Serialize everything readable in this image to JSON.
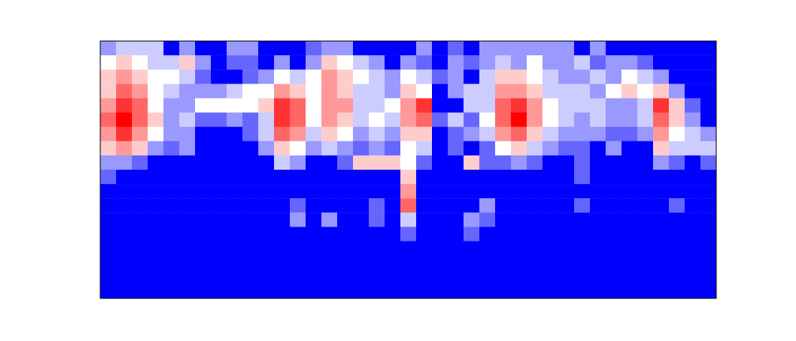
{
  "chart_data": {
    "type": "heatmap",
    "tick_labels": false,
    "color": "bwr",
    "color_range": [
      0,
      1
    ],
    "xlim": [
      0,
      39
    ],
    "ylim": [
      0,
      18
    ],
    "cells": [
      [
        0.3,
        0.4,
        0.4,
        0.4,
        0,
        0.3,
        0,
        0,
        0.3,
        0.3,
        0,
        0,
        0,
        0.2,
        0.3,
        0.3,
        0,
        0,
        0,
        0,
        0.3,
        0,
        0.2,
        0,
        0.3,
        0.3,
        0.3,
        0.3,
        0.3,
        0.3,
        0,
        0.3,
        0,
        0,
        0,
        0,
        0,
        0,
        0
      ],
      [
        0.5,
        0.6,
        0.5,
        0.4,
        0.4,
        0.6,
        0.3,
        0,
        0.2,
        0.2,
        0,
        0.3,
        0,
        0.3,
        0.6,
        0.5,
        0.4,
        0.3,
        0,
        0.3,
        0.2,
        0,
        0.3,
        0.2,
        0.3,
        0.4,
        0.3,
        0.5,
        0.3,
        0.3,
        0.4,
        0.2,
        0.3,
        0.3,
        0.2,
        0,
        0,
        0,
        0
      ],
      [
        0.6,
        0.7,
        0.6,
        0.5,
        0.5,
        0.4,
        0.2,
        0,
        0,
        0.2,
        0.3,
        0.5,
        0.4,
        0.5,
        0.7,
        0.6,
        0.5,
        0.4,
        0.3,
        0.5,
        0.4,
        0.2,
        0.3,
        0,
        0.4,
        0.6,
        0.6,
        0.5,
        0.4,
        0.3,
        0.3,
        0.4,
        0.3,
        0.5,
        0.4,
        0.3,
        0,
        0,
        0
      ],
      [
        0.6,
        0.8,
        0.7,
        0.5,
        0.4,
        0.3,
        0.3,
        0.3,
        0.4,
        0.5,
        0.5,
        0.7,
        0.6,
        0.5,
        0.7,
        0.6,
        0.4,
        0.4,
        0.3,
        0.6,
        0.5,
        0,
        0.3,
        0.4,
        0.4,
        0.7,
        0.7,
        0.6,
        0.4,
        0.4,
        0.4,
        0.3,
        0.5,
        0.6,
        0.5,
        0.6,
        0.3,
        0,
        0
      ],
      [
        0.7,
        0.9,
        0.8,
        0.5,
        0.3,
        0.3,
        0.5,
        0.5,
        0.5,
        0.5,
        0.6,
        0.9,
        0.8,
        0.5,
        0.7,
        0.7,
        0.4,
        0.4,
        0.5,
        0.7,
        0.9,
        0,
        0,
        0.4,
        0.4,
        0.8,
        0.9,
        0.7,
        0.5,
        0.4,
        0.4,
        0.4,
        0.3,
        0.3,
        0.4,
        0.9,
        0.6,
        0.2,
        0
      ],
      [
        0.8,
        1,
        0.8,
        0.6,
        0.3,
        0.4,
        0.2,
        0.2,
        0.3,
        0.2,
        0.4,
        0.9,
        0.8,
        0.5,
        0.7,
        0.6,
        0.4,
        0.5,
        0.4,
        0.7,
        0.8,
        0.2,
        0.4,
        0.2,
        0.5,
        0.8,
        1,
        0.7,
        0.5,
        0.4,
        0.3,
        0.4,
        0.3,
        0.3,
        0.4,
        0.8,
        0.6,
        0.3,
        0
      ],
      [
        0.7,
        0.9,
        0.7,
        0.5,
        0.3,
        0.3,
        0,
        0,
        0,
        0.2,
        0.4,
        0.8,
        0.7,
        0.4,
        0.6,
        0.5,
        0.3,
        0.4,
        0.3,
        0.6,
        0.6,
        0,
        0.2,
        0.3,
        0.4,
        0.7,
        0.8,
        0.6,
        0.4,
        0.3,
        0.3,
        0.3,
        0.2,
        0.2,
        0.3,
        0.7,
        0.5,
        0.4,
        0.3
      ],
      [
        0.6,
        0.7,
        0.6,
        0.3,
        0.2,
        0.3,
        0,
        0,
        0,
        0,
        0.3,
        0.6,
        0.5,
        0.3,
        0.4,
        0.3,
        0.2,
        0.3,
        0.2,
        0.5,
        0.4,
        0,
        0.2,
        0,
        0.2,
        0.5,
        0.6,
        0.4,
        0.3,
        0.2,
        0.2,
        0,
        0.3,
        0,
        0,
        0.6,
        0.4,
        0.4,
        0.4
      ],
      [
        0.3,
        0.3,
        0.2,
        0,
        0,
        0,
        0,
        0,
        0,
        0,
        0,
        0.4,
        0.3,
        0,
        0,
        0.2,
        0.6,
        0.6,
        0.6,
        0.5,
        0.2,
        0,
        0,
        0.6,
        0.2,
        0.2,
        0.3,
        0.2,
        0,
        0,
        0.2,
        0,
        0,
        0,
        0,
        0.3,
        0.2,
        0,
        0.2
      ],
      [
        0.2,
        0,
        0,
        0,
        0,
        0,
        0,
        0,
        0,
        0,
        0,
        0,
        0,
        0,
        0,
        0,
        0,
        0,
        0,
        0.6,
        0,
        0,
        0,
        0,
        0,
        0,
        0,
        0,
        0,
        0,
        0.2,
        0,
        0,
        0,
        0,
        0,
        0,
        0,
        0
      ],
      [
        0,
        0,
        0,
        0,
        0,
        0,
        0,
        0,
        0,
        0,
        0,
        0,
        0,
        0,
        0,
        0,
        0,
        0,
        0,
        0.7,
        0,
        0,
        0,
        0,
        0,
        0,
        0,
        0,
        0,
        0,
        0,
        0,
        0,
        0,
        0,
        0,
        0,
        0,
        0
      ],
      [
        0,
        0,
        0,
        0,
        0,
        0,
        0,
        0,
        0,
        0,
        0,
        0,
        0.2,
        0,
        0,
        0,
        0,
        0.2,
        0,
        0.8,
        0,
        0,
        0,
        0,
        0.3,
        0,
        0,
        0,
        0,
        0,
        0.2,
        0,
        0,
        0,
        0,
        0,
        0.2,
        0,
        0
      ],
      [
        0,
        0,
        0,
        0,
        0,
        0,
        0,
        0,
        0,
        0,
        0,
        0,
        0.3,
        0,
        0.3,
        0,
        0,
        0.2,
        0,
        0.4,
        0,
        0,
        0,
        0.3,
        0.2,
        0,
        0,
        0,
        0,
        0,
        0,
        0,
        0,
        0,
        0,
        0,
        0,
        0,
        0
      ],
      [
        0,
        0,
        0,
        0,
        0,
        0,
        0,
        0,
        0,
        0,
        0,
        0,
        0,
        0,
        0,
        0,
        0,
        0,
        0,
        0.2,
        0,
        0,
        0,
        0.2,
        0,
        0,
        0,
        0,
        0,
        0,
        0,
        0,
        0,
        0,
        0,
        0,
        0,
        0,
        0
      ],
      [
        0,
        0,
        0,
        0,
        0,
        0,
        0,
        0,
        0,
        0,
        0,
        0,
        0,
        0,
        0,
        0,
        0,
        0,
        0,
        0,
        0,
        0,
        0,
        0,
        0,
        0,
        0,
        0,
        0,
        0,
        0,
        0,
        0,
        0,
        0,
        0,
        0,
        0,
        0
      ],
      [
        0,
        0,
        0,
        0,
        0,
        0,
        0,
        0,
        0,
        0,
        0,
        0,
        0,
        0,
        0,
        0,
        0,
        0,
        0,
        0,
        0,
        0,
        0,
        0,
        0,
        0,
        0,
        0,
        0,
        0,
        0,
        0,
        0,
        0,
        0,
        0,
        0,
        0,
        0
      ],
      [
        0,
        0,
        0,
        0,
        0,
        0,
        0,
        0,
        0,
        0,
        0,
        0,
        0,
        0,
        0,
        0,
        0,
        0,
        0,
        0,
        0,
        0,
        0,
        0,
        0,
        0,
        0,
        0,
        0,
        0,
        0,
        0,
        0,
        0,
        0,
        0,
        0,
        0,
        0
      ],
      [
        0,
        0,
        0,
        0,
        0,
        0,
        0,
        0,
        0,
        0,
        0,
        0,
        0,
        0,
        0,
        0,
        0,
        0,
        0,
        0,
        0,
        0,
        0,
        0,
        0,
        0,
        0,
        0,
        0,
        0,
        0,
        0,
        0,
        0,
        0,
        0,
        0,
        0,
        0
      ]
    ]
  }
}
